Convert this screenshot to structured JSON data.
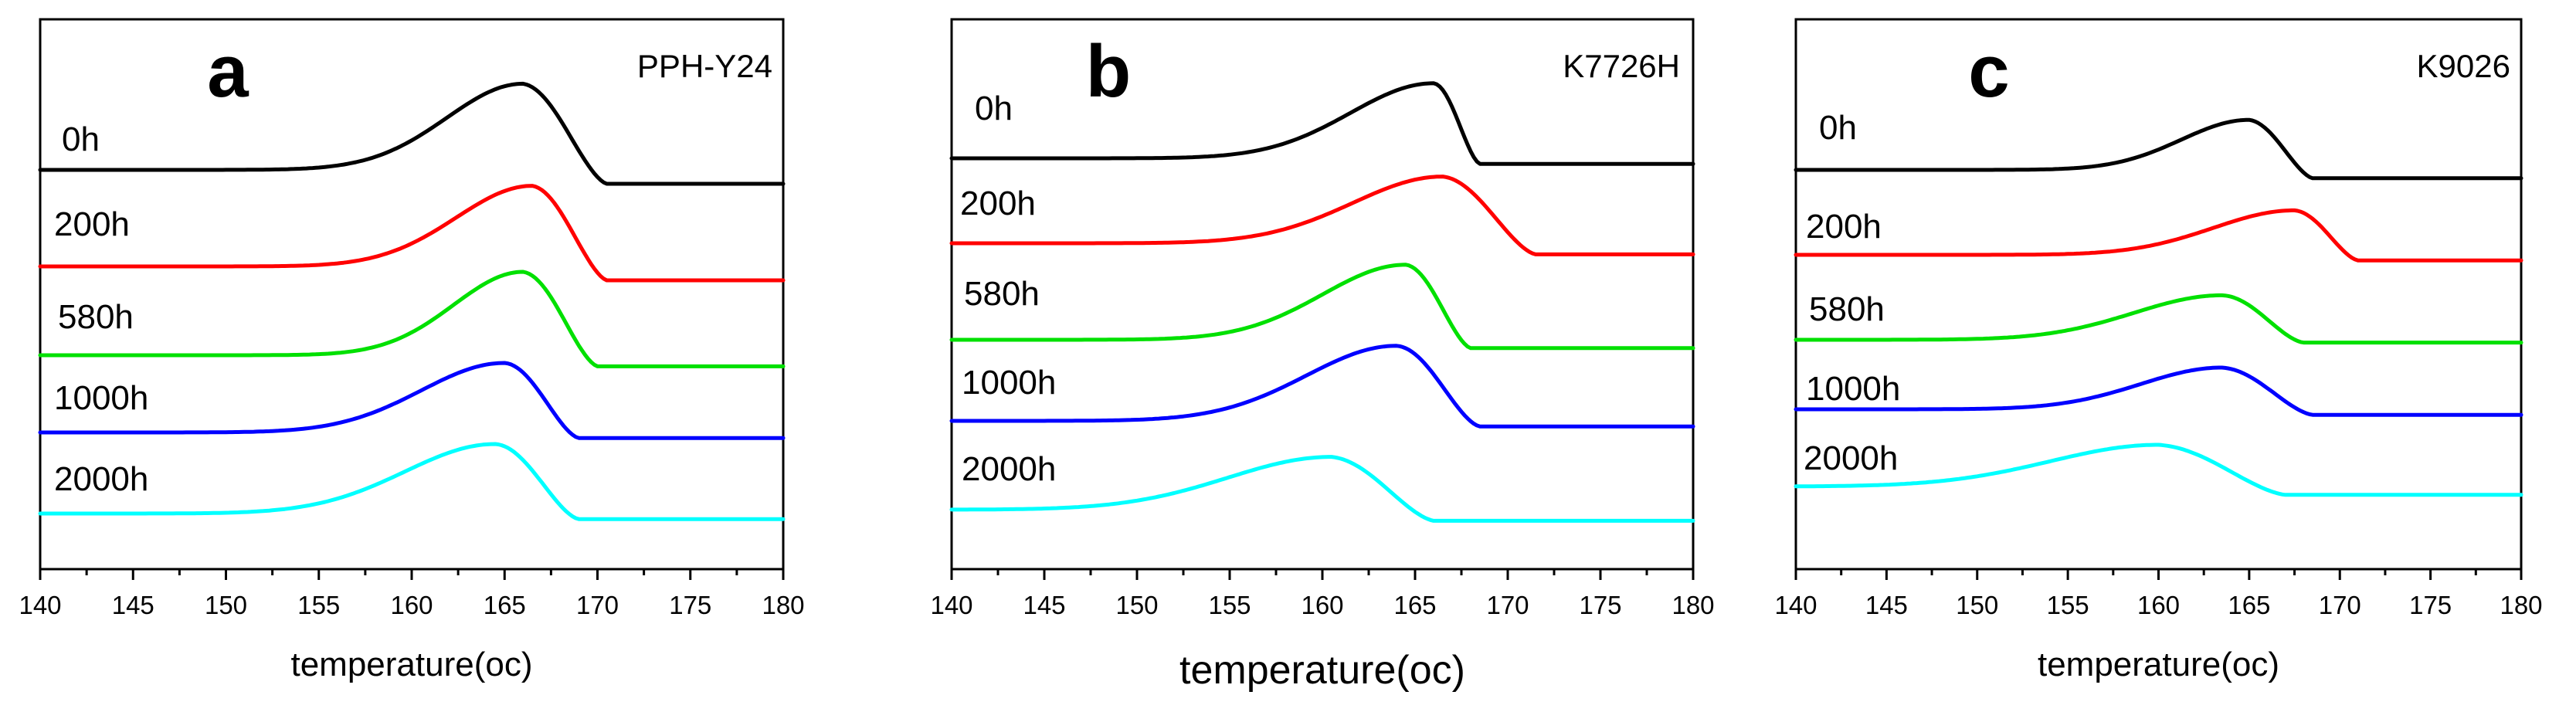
{
  "chart_data": [
    {
      "type": "line",
      "panel_letter": "a",
      "sample": "PPH-Y24",
      "xlabel": "temperature(oc)",
      "ylabel": "",
      "xlim": [
        140,
        180
      ],
      "xticks": [
        140,
        145,
        150,
        155,
        160,
        165,
        170,
        175,
        180
      ],
      "y_ticks_shown": false,
      "series": [
        {
          "name": "0h",
          "color": "#000000",
          "baseline_left": 0.0,
          "baseline_right": -0.25,
          "peak_x": 166.0,
          "peak_height": 1.55,
          "rise_width": 5.5,
          "end_x": 170.5
        },
        {
          "name": "200h",
          "color": "#ff0000",
          "baseline_left": 0.0,
          "baseline_right": -0.25,
          "peak_x": 166.5,
          "peak_height": 1.45,
          "rise_width": 5.5,
          "end_x": 170.5
        },
        {
          "name": "580h",
          "color": "#00e000",
          "baseline_left": 0.0,
          "baseline_right": -0.2,
          "peak_x": 166.0,
          "peak_height": 1.5,
          "rise_width": 5.0,
          "end_x": 170.0
        },
        {
          "name": "1000h",
          "color": "#0000ff",
          "baseline_left": 0.0,
          "baseline_right": -0.1,
          "peak_x": 165.0,
          "peak_height": 1.25,
          "rise_width": 6.0,
          "end_x": 169.0
        },
        {
          "name": "2000h",
          "color": "#00ffff",
          "baseline_left": 0.0,
          "baseline_right": -0.1,
          "peak_x": 164.5,
          "peak_height": 1.25,
          "rise_width": 6.5,
          "end_x": 169.0
        }
      ]
    },
    {
      "type": "line",
      "panel_letter": "b",
      "sample": "K7726H",
      "xlabel": "temperature(oc)",
      "ylabel": "",
      "xlim": [
        140,
        180
      ],
      "xticks": [
        140,
        145,
        150,
        155,
        160,
        165,
        170,
        175,
        180
      ],
      "y_ticks_shown": false,
      "series": [
        {
          "name": "0h",
          "color": "#000000",
          "baseline_left": 0.0,
          "baseline_right": -0.1,
          "peak_x": 166.0,
          "peak_height": 1.35,
          "rise_width": 6.0,
          "end_x": 168.5
        },
        {
          "name": "200h",
          "color": "#ff0000",
          "baseline_left": 0.0,
          "baseline_right": -0.2,
          "peak_x": 166.5,
          "peak_height": 1.2,
          "rise_width": 6.5,
          "end_x": 171.5
        },
        {
          "name": "580h",
          "color": "#00e000",
          "baseline_left": 0.0,
          "baseline_right": -0.15,
          "peak_x": 164.5,
          "peak_height": 1.35,
          "rise_width": 6.0,
          "end_x": 168.0
        },
        {
          "name": "1000h",
          "color": "#0000ff",
          "baseline_left": 0.0,
          "baseline_right": -0.1,
          "peak_x": 164.0,
          "peak_height": 1.35,
          "rise_width": 6.5,
          "end_x": 168.5
        },
        {
          "name": "2000h",
          "color": "#00ffff",
          "baseline_left": 0.0,
          "baseline_right": -0.2,
          "peak_x": 160.5,
          "peak_height": 0.95,
          "rise_width": 7.5,
          "end_x": 166.0
        }
      ]
    },
    {
      "type": "line",
      "panel_letter": "c",
      "sample": "K9026",
      "xlabel": "temperature(oc)",
      "ylabel": "",
      "xlim": [
        140,
        180
      ],
      "xticks": [
        140,
        145,
        150,
        155,
        160,
        165,
        170,
        175,
        180
      ],
      "y_ticks_shown": false,
      "series": [
        {
          "name": "0h",
          "color": "#000000",
          "baseline_left": 0.0,
          "baseline_right": -0.15,
          "peak_x": 165.0,
          "peak_height": 0.9,
          "rise_width": 5.0,
          "end_x": 168.5
        },
        {
          "name": "200h",
          "color": "#ff0000",
          "baseline_left": 0.0,
          "baseline_right": -0.1,
          "peak_x": 167.5,
          "peak_height": 0.8,
          "rise_width": 6.0,
          "end_x": 171.0
        },
        {
          "name": "580h",
          "color": "#00e000",
          "baseline_left": 0.0,
          "baseline_right": -0.05,
          "peak_x": 163.5,
          "peak_height": 0.8,
          "rise_width": 6.5,
          "end_x": 168.0
        },
        {
          "name": "1000h",
          "color": "#0000ff",
          "baseline_left": 0.0,
          "baseline_right": -0.1,
          "peak_x": 163.5,
          "peak_height": 0.75,
          "rise_width": 6.0,
          "end_x": 168.5
        },
        {
          "name": "2000h",
          "color": "#00ffff",
          "baseline_left": 0.0,
          "baseline_right": -0.15,
          "peak_x": 160.0,
          "peak_height": 0.75,
          "rise_width": 8.0,
          "end_x": 167.0
        }
      ]
    }
  ]
}
